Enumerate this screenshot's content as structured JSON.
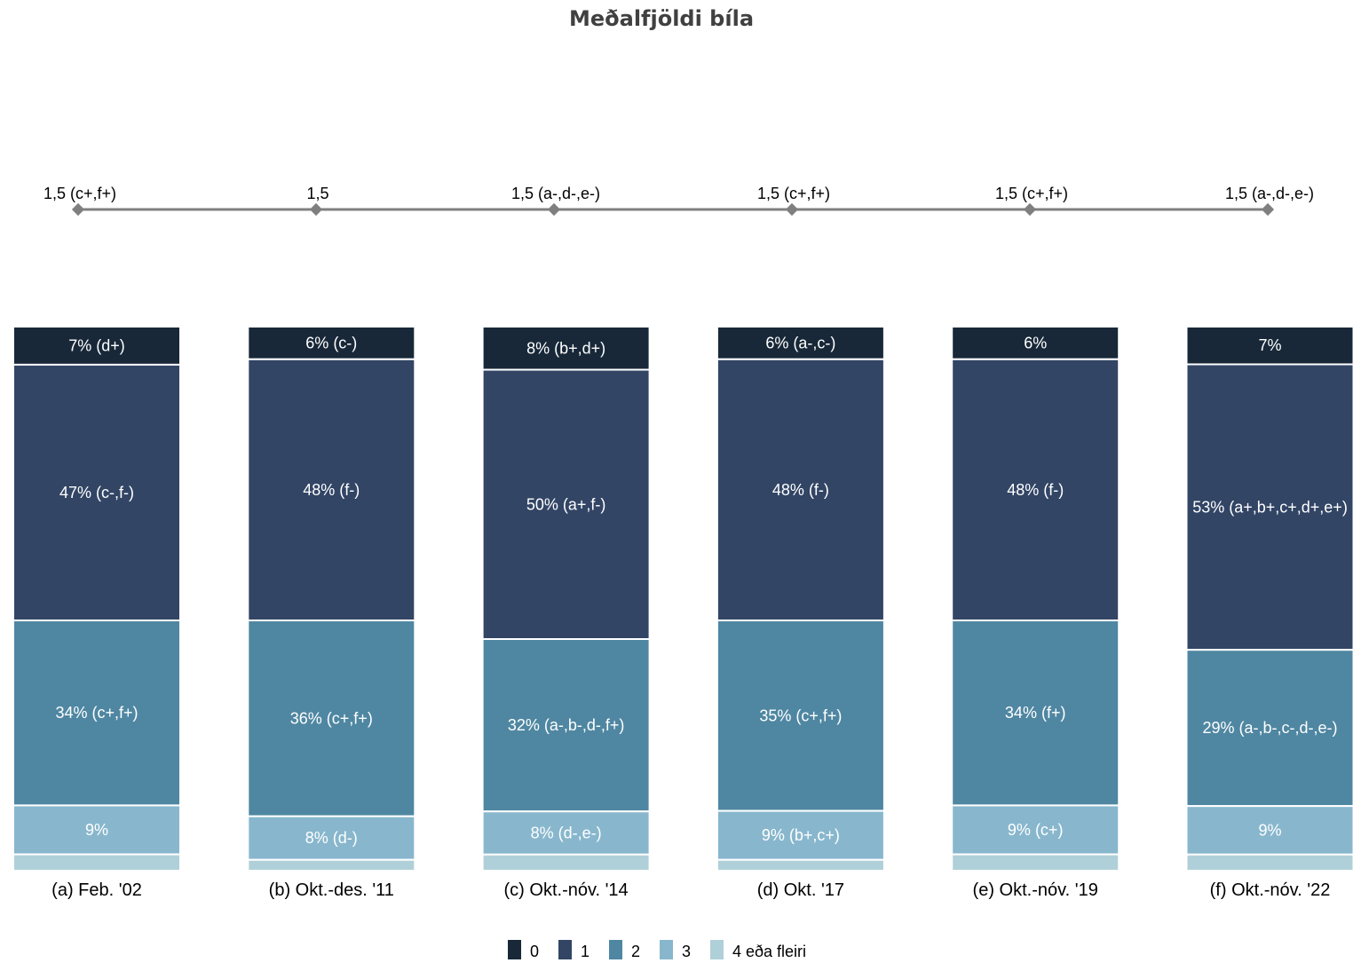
{
  "chart_data": {
    "type": "bar",
    "stacked": "percent",
    "title": "Meðalfjöldi bíla",
    "categories": [
      "(a) Feb. '02",
      "(b) Okt.-des. '11",
      "(c) Okt.-nóv. '14",
      "(d) Okt. '17",
      "(e) Okt.-nóv. '19",
      "(f) Okt.-nóv. '22"
    ],
    "series": [
      {
        "name": "0",
        "color": "#182839",
        "values": [
          7,
          6,
          8,
          6,
          6,
          7
        ],
        "labels": [
          "7% (d+)",
          "6% (c-)",
          "8% (b+,d+)",
          "6% (a-,c-)",
          "6%",
          "7%"
        ]
      },
      {
        "name": "1",
        "color": "#324565",
        "values": [
          47,
          48,
          50,
          48,
          48,
          53
        ],
        "labels": [
          "47% (c-,f-)",
          "48% (f-)",
          "50% (a+,f-)",
          "48% (f-)",
          "48% (f-)",
          "53% (a+,b+,c+,d+,e+)"
        ]
      },
      {
        "name": "2",
        "color": "#4f87a2",
        "values": [
          34,
          36,
          32,
          35,
          34,
          29
        ],
        "labels": [
          "34% (c+,f+)",
          "36% (c+,f+)",
          "32% (a-,b-,d-,f+)",
          "35% (c+,f+)",
          "34% (f+)",
          "29% (a-,b-,c-,d-,e-)"
        ]
      },
      {
        "name": "3",
        "color": "#88b7cd",
        "values": [
          9,
          8,
          8,
          9,
          9,
          9
        ],
        "labels": [
          "9%",
          "8% (d-)",
          "8% (d-,e-)",
          "9% (b+,c+)",
          "9% (c+)",
          "9%"
        ]
      },
      {
        "name": "4 eða fleiri",
        "color": "#b0d0d9",
        "values": [
          3,
          2,
          3,
          2,
          3,
          3
        ],
        "labels": [
          "",
          "",
          "",
          "",
          "",
          ""
        ]
      }
    ],
    "mean_line": {
      "color": "#7f7f7f",
      "values": [
        1.5,
        1.5,
        1.5,
        1.5,
        1.5,
        1.5
      ],
      "labels": [
        "1,5 (c+,f+)",
        "1,5",
        "1,5 (a-,d-,e-)",
        "1,5 (c+,f+)",
        "1,5 (c+,f+)",
        "1,5 (a-,d-,e-)"
      ]
    },
    "legend": "bottom",
    "grid": false
  }
}
